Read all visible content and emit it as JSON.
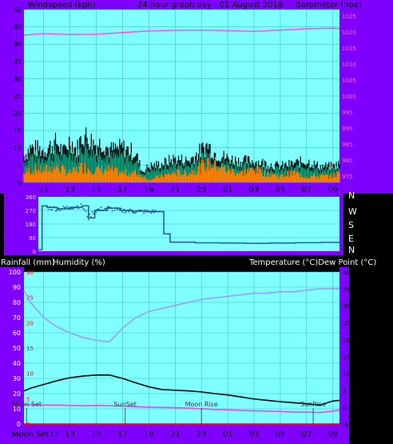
{
  "header": {
    "windspeed_label": "Windspeed (kph)",
    "graph_title": "24 hour graph day : 01 August 2018",
    "barometer_label": "Barometer (hpa)"
  },
  "direction_labels": [
    "N",
    "W",
    "S",
    "E",
    "N"
  ],
  "middle_labels": {
    "rainfall": "Rainfall (mm)",
    "humidity": "Humidity (%)",
    "temperature_dewpoint": "Temperature (°C)Dew Point (°C)"
  },
  "colors": {
    "panel_bg": "#7fffff",
    "frame": "#8000ff",
    "wind_max": "#000000",
    "wind_avg": "#ff8000",
    "wind_fill": "#00c090",
    "barometer": "#ff44ff",
    "direction": "#1a4a8a",
    "humidity": "#9a9aff",
    "temperature": "#000000",
    "dewpoint": "#ee44ee",
    "rain": "#ff0000"
  },
  "x_tick_labels": [
    "11",
    "13",
    "15",
    "17",
    "19",
    "21",
    "23",
    "01",
    "03",
    "05",
    "07",
    "09"
  ],
  "bottom_x_tick_labels": [
    "Moon Set11",
    "13",
    "15",
    "17",
    "19",
    "21",
    "23",
    "01",
    "03",
    "05",
    "07",
    "09"
  ],
  "chart_data": [
    {
      "type": "line",
      "panel": "wind-barometer",
      "x_unit": "hour-of-day (24 h window from 09:30 to 09:30 next day)",
      "y_left_ticks": [
        0,
        5,
        10,
        15,
        20,
        25,
        30,
        35,
        40,
        45,
        50
      ],
      "y_right_ticks": [
        975,
        980,
        985,
        990,
        995,
        1000,
        1005,
        1010,
        1015,
        1020,
        1025
      ],
      "y_left_range": [
        0,
        50
      ],
      "y_right_range": [
        973,
        1027
      ],
      "series": [
        {
          "name": "Windspeed (kph)",
          "role": "gust",
          "x": [
            9.5,
            10,
            11,
            12,
            12.5,
            13,
            13.5,
            14,
            15,
            15.5,
            16,
            17,
            18,
            18.5,
            19,
            20,
            21,
            22,
            23,
            23.5,
            24,
            25,
            26,
            27,
            28,
            29,
            30,
            31,
            32,
            33,
            33.5
          ],
          "y": [
            10,
            13,
            12,
            15,
            11,
            16,
            12,
            18,
            14,
            15,
            12,
            13,
            11,
            4,
            6,
            7,
            9,
            8,
            12,
            14,
            11,
            9,
            8,
            8,
            7,
            6,
            7,
            8,
            6,
            6,
            7
          ]
        },
        {
          "name": "avg",
          "role": "avg",
          "x": [
            9.5,
            10,
            11,
            12,
            13,
            14,
            15,
            16,
            17,
            18,
            19,
            20,
            21,
            22,
            23,
            24,
            25,
            26,
            27,
            28,
            29,
            30,
            31,
            32,
            33,
            33.5
          ],
          "y": [
            3,
            4,
            4,
            5,
            3,
            5,
            4,
            4,
            3,
            3,
            1,
            2,
            3,
            3,
            5,
            6,
            4,
            3,
            4,
            3,
            2,
            3,
            2,
            2,
            2,
            3
          ]
        },
        {
          "name": "Barometer (hpa)",
          "axis": "right",
          "x": [
            9.5,
            11,
            13,
            15,
            17,
            19,
            21,
            23,
            25,
            27,
            29,
            31,
            33,
            33.5
          ],
          "y": [
            1019,
            1019.5,
            1019.2,
            1019.3,
            1019.8,
            1020.3,
            1020.5,
            1020.6,
            1020.4,
            1020.2,
            1020.6,
            1021,
            1021.2,
            1021
          ]
        }
      ]
    },
    {
      "type": "line",
      "panel": "wind-direction",
      "y_ticks": [
        0,
        90,
        180,
        270,
        360
      ],
      "y_range": [
        0,
        360
      ],
      "series": [
        {
          "name": "direction",
          "x": [
            9.5,
            9.7,
            9.8,
            10.2,
            11,
            12,
            13,
            13.5,
            14,
            15,
            16,
            17,
            18,
            19,
            19.4,
            19.5,
            20,
            22,
            24,
            26,
            28,
            30,
            32,
            33.5
          ],
          "y": [
            10,
            10,
            300,
            290,
            280,
            290,
            300,
            220,
            270,
            285,
            270,
            265,
            262,
            262,
            262,
            115,
            60,
            55,
            54,
            52,
            54,
            56,
            58,
            55
          ]
        }
      ]
    },
    {
      "type": "line",
      "panel": "humidity-temperature",
      "y_left_ticks": [
        0,
        10,
        20,
        30,
        40,
        50,
        60,
        70,
        80,
        90,
        100
      ],
      "y_right_ticks": [
        -5,
        0,
        5,
        10,
        15,
        20,
        25,
        30,
        35,
        40
      ],
      "y_left_range": [
        0,
        100
      ],
      "y_right_range": [
        -5,
        40
      ],
      "series": [
        {
          "name": "Humidity (%)",
          "axis": "left",
          "x": [
            9.5,
            10,
            11,
            12,
            13,
            14,
            15,
            16,
            17,
            18,
            19,
            20,
            21,
            22,
            23,
            24,
            25,
            26,
            27,
            28,
            29,
            30,
            31,
            32,
            33,
            33.5
          ],
          "y": [
            88,
            80,
            70,
            64,
            60,
            57,
            55,
            54,
            63,
            70,
            74,
            76,
            78,
            80,
            82,
            83,
            84,
            85,
            86,
            86,
            87,
            87,
            88,
            89,
            89,
            89
          ]
        },
        {
          "name": "Temperature (°C)",
          "axis": "right",
          "x": [
            9.5,
            10,
            11,
            12,
            13,
            14,
            15,
            16,
            17,
            18,
            19,
            20,
            21,
            22,
            23,
            24,
            25,
            26,
            27,
            28,
            29,
            30,
            31,
            32,
            33,
            33.5
          ],
          "y": [
            4.8,
            5.6,
            6.7,
            7.8,
            8.7,
            9.2,
            9.5,
            9.5,
            8.5,
            7.2,
            6.0,
            5.2,
            5.0,
            4.8,
            4.5,
            4.0,
            3.6,
            3.0,
            2.4,
            2.0,
            1.6,
            1.3,
            1.0,
            0.6,
            1.8,
            2.0
          ]
        },
        {
          "name": "Dew Point (°C)",
          "axis": "right",
          "x": [
            9.5,
            10,
            11,
            12,
            13,
            14,
            15,
            16,
            17,
            18,
            19,
            20,
            21,
            22,
            23,
            24,
            25,
            26,
            27,
            28,
            29,
            30,
            31,
            32,
            33,
            33.5
          ],
          "y": [
            0.7,
            0.7,
            0.6,
            0.6,
            0.5,
            0.4,
            0.5,
            0.4,
            0.3,
            0.1,
            0.0,
            -0.1,
            -0.2,
            -0.3,
            -0.5,
            -0.7,
            -0.8,
            -1.0,
            -1.1,
            -1.2,
            -1.3,
            -1.5,
            -1.5,
            -1.6,
            -1.2,
            -0.9
          ]
        },
        {
          "name": "Rainfall (mm)",
          "axis": "left",
          "x": [
            9.5,
            33.5
          ],
          "y": [
            0,
            0
          ]
        }
      ],
      "annotations": [
        {
          "text": "Moon Set",
          "x": 9.7
        },
        {
          "text": "SunSet",
          "x": 17.2
        },
        {
          "text": "Moon Rise",
          "x": 23.0
        },
        {
          "text": "SunRise",
          "x": 31.5
        }
      ]
    }
  ]
}
